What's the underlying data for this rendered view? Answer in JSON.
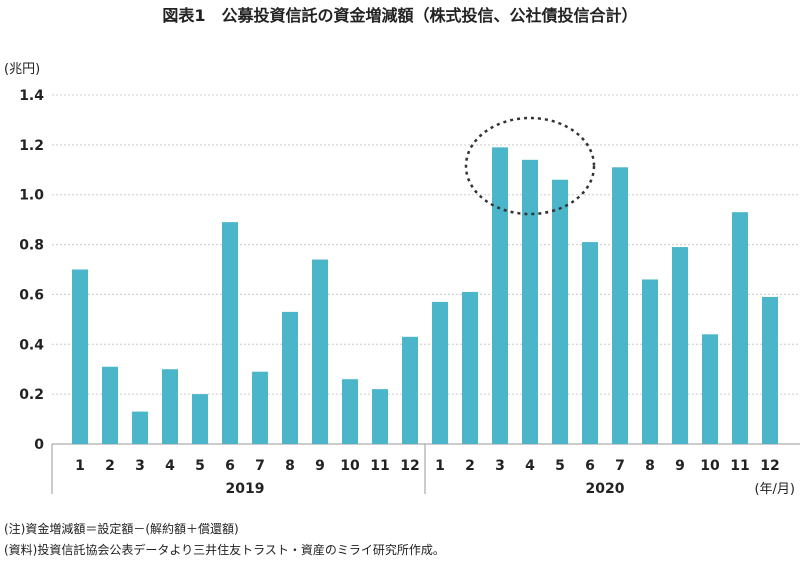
{
  "title": "図表1　公募投資信託の資金増減額（株式投信、公社債投信合計）",
  "notes": [
    "(注)資金増減額＝設定額－(解約額＋償還額)",
    "(資料)投資信託協会公表データより三井住友トラスト・資産のミライ研究所作成。"
  ],
  "chart_data": {
    "type": "bar",
    "title": "図表1　公募投資信託の資金増減額（株式投信、公社債投信合計）",
    "ylabel": "(兆円)",
    "xlabel": "(年/月)",
    "ylim": [
      0,
      1.4
    ],
    "yticks": [
      "0",
      "0.2",
      "0.4",
      "0.6",
      "0.8",
      "1.0",
      "1.2",
      "1.4"
    ],
    "grid": true,
    "color": "#4bb5c9",
    "groups": [
      {
        "label": "2019",
        "categories": [
          "1",
          "2",
          "3",
          "4",
          "5",
          "6",
          "7",
          "8",
          "9",
          "10",
          "11",
          "12"
        ],
        "values": [
          0.7,
          0.31,
          0.13,
          0.3,
          0.2,
          0.89,
          0.29,
          0.53,
          0.74,
          0.26,
          0.22,
          0.43
        ]
      },
      {
        "label": "2020",
        "categories": [
          "1",
          "2",
          "3",
          "4",
          "5",
          "6",
          "7",
          "8",
          "9",
          "10",
          "11",
          "12"
        ],
        "values": [
          0.57,
          0.61,
          1.19,
          1.14,
          1.06,
          0.81,
          1.11,
          0.66,
          0.79,
          0.44,
          0.93,
          0.59
        ]
      }
    ],
    "annotation": "dotted ellipse highlighting 2020 months 3–5"
  }
}
